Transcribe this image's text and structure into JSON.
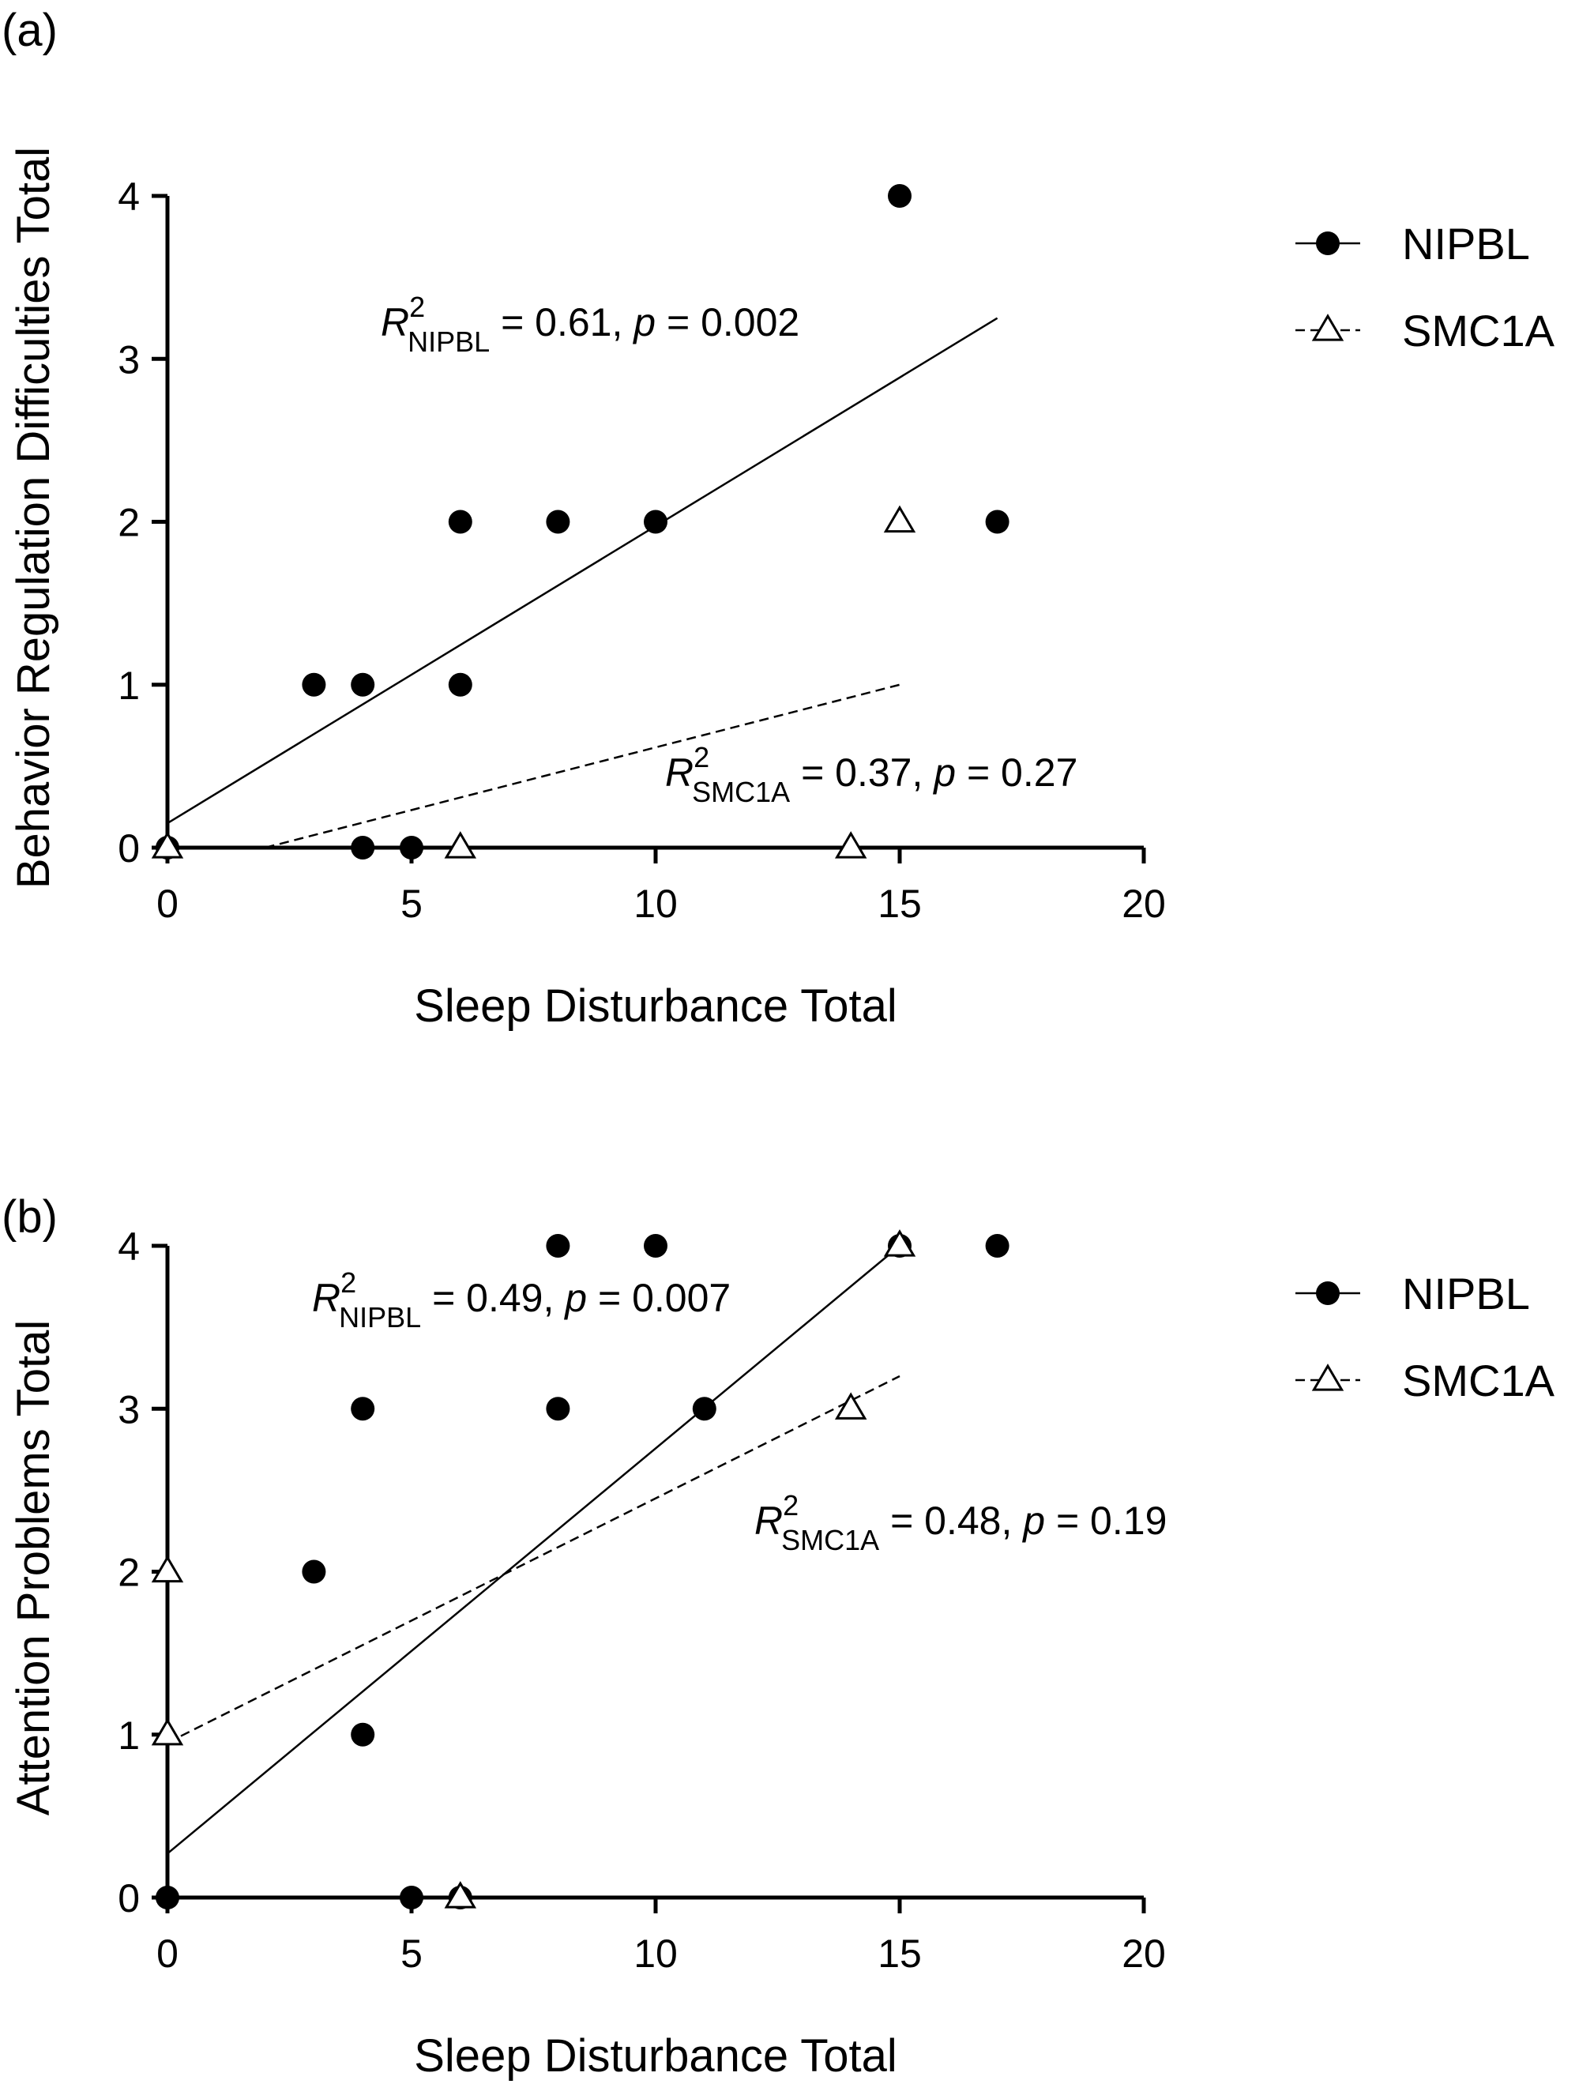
{
  "chart_data": [
    {
      "type": "scatter",
      "panel_label": "(a)",
      "xlabel": "Sleep Disturbance Total",
      "ylabel": "Behavior Regulation Difficulties Total",
      "xlim": [
        0,
        20
      ],
      "ylim": [
        0,
        4
      ],
      "xticks": [
        "0",
        "5",
        "10",
        "15",
        "20"
      ],
      "yticks": [
        "0",
        "1",
        "2",
        "3",
        "4"
      ],
      "legend_position": "right",
      "series": [
        {
          "name": "NIPBL",
          "marker": "filled-circle",
          "line_style": "solid",
          "points": [
            [
              0,
              0
            ],
            [
              3,
              1
            ],
            [
              4,
              1
            ],
            [
              4,
              0
            ],
            [
              5,
              0
            ],
            [
              6,
              2
            ],
            [
              6,
              1
            ],
            [
              8,
              2
            ],
            [
              10,
              2
            ],
            [
              15,
              4
            ],
            [
              17,
              2
            ]
          ],
          "fit": {
            "x": [
              0,
              17
            ],
            "y": [
              0.15,
              3.25
            ]
          },
          "annotation": {
            "prefix": "R",
            "sup": "2",
            "sub": "NIPBL",
            "eq": " = 0.61, ",
            "p": "p",
            "rest": " = 0.002"
          }
        },
        {
          "name": "SMC1A",
          "marker": "open-triangle",
          "line_style": "dashed",
          "points": [
            [
              0,
              0
            ],
            [
              6,
              0
            ],
            [
              14,
              0
            ],
            [
              15,
              2
            ]
          ],
          "fit": {
            "x": [
              2,
              15
            ],
            "y": [
              0,
              1.0
            ]
          },
          "annotation": {
            "prefix": "R",
            "sup": "2",
            "sub": "SMC1A",
            "eq": " = 0.37, ",
            "p": "p",
            "rest": " = 0.27"
          }
        }
      ]
    },
    {
      "type": "scatter",
      "panel_label": "(b)",
      "xlabel": "Sleep Disturbance Total",
      "ylabel": "Attention Problems Total",
      "xlim": [
        0,
        20
      ],
      "ylim": [
        0,
        4
      ],
      "xticks": [
        "0",
        "5",
        "10",
        "15",
        "20"
      ],
      "yticks": [
        "0",
        "1",
        "2",
        "3",
        "4"
      ],
      "legend_position": "right",
      "series": [
        {
          "name": "NIPBL",
          "marker": "filled-circle",
          "line_style": "solid",
          "points": [
            [
              0,
              0
            ],
            [
              3,
              2
            ],
            [
              4,
              3
            ],
            [
              4,
              1
            ],
            [
              5,
              0
            ],
            [
              6,
              0
            ],
            [
              8,
              4
            ],
            [
              8,
              3
            ],
            [
              10,
              4
            ],
            [
              11,
              3
            ],
            [
              15,
              4
            ],
            [
              17,
              4
            ]
          ],
          "fit": {
            "x": [
              0,
              15
            ],
            "y": [
              0.27,
              4.0
            ]
          },
          "annotation": {
            "prefix": "R",
            "sup": "2",
            "sub": "NIPBL",
            "eq": " = 0.49, ",
            "p": "p",
            "rest": " = 0.007"
          }
        },
        {
          "name": "SMC1A",
          "marker": "open-triangle",
          "line_style": "dashed",
          "points": [
            [
              0,
              2
            ],
            [
              0,
              1
            ],
            [
              6,
              0
            ],
            [
              14,
              3
            ],
            [
              15,
              4
            ]
          ],
          "fit": {
            "x": [
              0,
              15
            ],
            "y": [
              0.95,
              3.2
            ]
          },
          "annotation": {
            "prefix": "R",
            "sup": "2",
            "sub": "SMC1A",
            "eq": " = 0.48, ",
            "p": "p",
            "rest": " = 0.19"
          }
        }
      ]
    }
  ]
}
